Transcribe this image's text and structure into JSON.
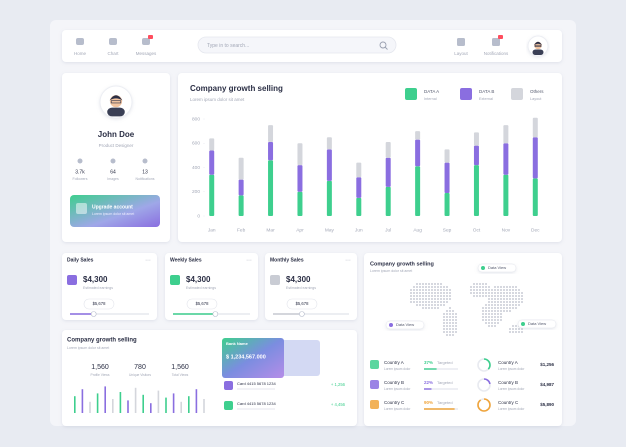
{
  "nav": {
    "items": [
      "Home",
      "Chart",
      "Messages"
    ],
    "search_placeholder": "Type in to search...",
    "right_items": [
      "Layout",
      "Notifications"
    ]
  },
  "profile": {
    "name": "John Doe",
    "role": "Product Designer",
    "stats": [
      {
        "value": "3.7k",
        "label": "Followers"
      },
      {
        "value": "64",
        "label": "Images"
      },
      {
        "value": "13",
        "label": "Notifications"
      }
    ],
    "upgrade": {
      "title": "Upgrade account",
      "text": "Lorem ipsum dolor sit amet"
    }
  },
  "growth_chart": {
    "type": "bar",
    "stacked": true,
    "title": "Company growth selling",
    "subtitle": "Lorem ipsum dolor sit amet",
    "categories": [
      "Jan",
      "Feb",
      "Mar",
      "Apr",
      "May",
      "Jun",
      "Jul",
      "Aug",
      "Sep",
      "Oct",
      "Nov",
      "Dec"
    ],
    "series": [
      {
        "name": "DATA A",
        "sublabel": "Internal",
        "color": "#3ecf8e",
        "values": [
          340,
          170,
          460,
          200,
          290,
          150,
          240,
          410,
          190,
          420,
          340,
          310
        ]
      },
      {
        "name": "DATA B",
        "sublabel": "External",
        "color": "#8a6ee0",
        "values": [
          200,
          130,
          150,
          220,
          260,
          170,
          240,
          220,
          250,
          160,
          260,
          340
        ]
      },
      {
        "name": "Others",
        "sublabel": "Layout",
        "color": "#d4d6dc",
        "values": [
          100,
          180,
          140,
          180,
          100,
          120,
          130,
          70,
          110,
          110,
          150,
          160
        ]
      }
    ],
    "ylim": [
      0,
      800
    ],
    "yticks": [
      0,
      200,
      400,
      600,
      800
    ]
  },
  "small_cards": [
    {
      "title": "Daily Sales",
      "amount": "$4,300",
      "caption": "Estimated earnings",
      "badge": "$5,678",
      "progress": 30
    },
    {
      "title": "Weekly Sales",
      "amount": "$4,300",
      "caption": "Estimated earnings",
      "badge": "$5,678",
      "progress": 55
    },
    {
      "title": "Monthly Sales",
      "amount": "$4,300",
      "caption": "Estimated earnings",
      "badge": "$5,678",
      "progress": 38
    }
  ],
  "map_card": {
    "title": "Company growth selling",
    "subtitle": "Lorem ipsum dolor sit amet",
    "data_view_labels": [
      "Data View",
      "Data View",
      "Data View"
    ],
    "countries": [
      {
        "name": "Country A",
        "text": "Lorem ipsum dolor",
        "percent": 37,
        "percent_label": "37%",
        "status": "Targeted",
        "amount": "$1,256",
        "color": "#3ecf8e"
      },
      {
        "name": "Country B",
        "text": "Lorem ipsum dolor",
        "percent": 22,
        "percent_label": "22%",
        "status": "Targeted",
        "amount": "$4,987",
        "color": "#8a6ee0"
      },
      {
        "name": "Country C",
        "text": "Lorem ipsum dolor",
        "percent": 90,
        "percent_label": "90%",
        "status": "Targeted",
        "amount": "$5,890",
        "color": "#f0a53c"
      }
    ]
  },
  "bottom_card": {
    "title": "Company growth selling",
    "subtitle": "Lorem ipsum dolor sit amet",
    "stats": [
      {
        "value": "1,560",
        "label": "Profile Views"
      },
      {
        "value": "780",
        "label": "Unique Visitors"
      },
      {
        "value": "1,560",
        "label": "Total Views"
      }
    ],
    "mini_bars": [
      60,
      85,
      40,
      70,
      95,
      50,
      75,
      45,
      90,
      65,
      35,
      80,
      55,
      70,
      40,
      60,
      85,
      50
    ],
    "bank_card": {
      "bank": "Bank Name",
      "balance": "$ 1,234,567.000"
    },
    "transactions": [
      {
        "card": "Card 4415 5678 1234",
        "amount": "+ 1,256"
      },
      {
        "card": "Card 4415 5678 1234",
        "amount": "+ 4,456"
      }
    ]
  }
}
